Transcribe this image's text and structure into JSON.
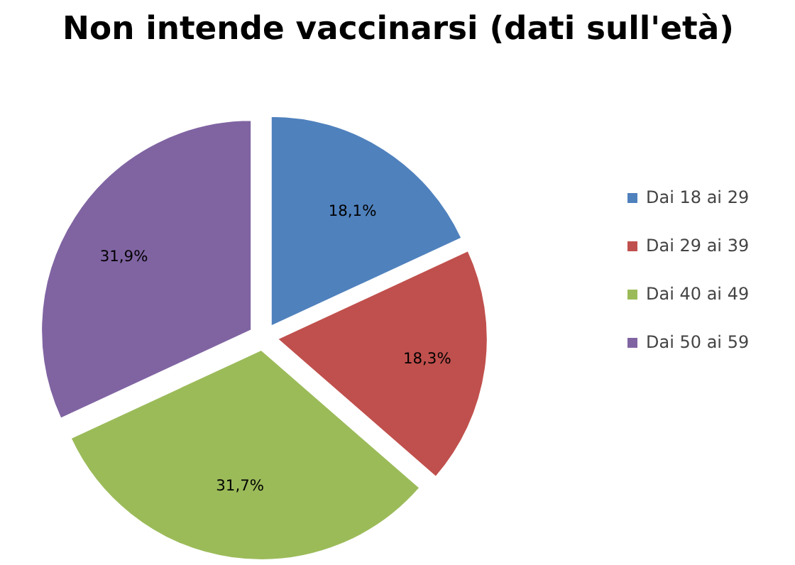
{
  "chart_data": {
    "type": "pie",
    "title": "Non intende vaccinarsi (dati sull'età)",
    "categories": [
      "Dai 18 ai 29",
      "Dai 29 ai 39",
      "Dai 40 ai 49",
      "Dai 50 ai 59"
    ],
    "values": [
      18.1,
      18.3,
      31.7,
      31.9
    ],
    "value_labels": [
      "18,1%",
      "18,3%",
      "31,7%",
      "31,9%"
    ],
    "colors": [
      "#4f81bd",
      "#c0504d",
      "#9bbb59",
      "#8064a2"
    ],
    "legend": "right"
  }
}
